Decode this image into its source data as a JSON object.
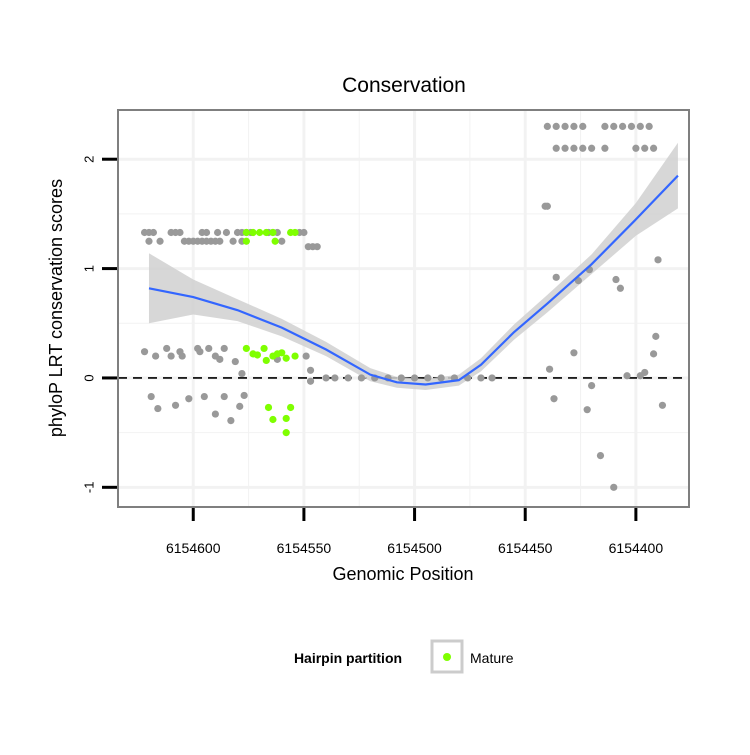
{
  "chart_data": {
    "type": "scatter",
    "title": "Conservation",
    "xlabel": "Genomic Position",
    "ylabel": "phyloP LRT conservation scores",
    "x_reversed": true,
    "xlim": [
      6154634,
      6154376
    ],
    "ylim": [
      -1.18,
      2.45
    ],
    "x_ticks": [
      6154600,
      6154550,
      6154500,
      6154450,
      6154400
    ],
    "x_tick_labels": [
      "6154600",
      "6154550",
      "6154500",
      "6154450",
      "6154400"
    ],
    "y_ticks": [
      -1,
      0,
      1,
      2
    ],
    "y_tick_labels": [
      "-1",
      "0",
      "1",
      "2"
    ],
    "reference_line": {
      "y": 0,
      "style": "dashed",
      "color": "#000000"
    },
    "colors": {
      "other": "#999999",
      "mature": "#7fff00",
      "smooth": "#3366ff",
      "ribbon": "#d0d0d0",
      "panel_border": "#7f7f7f",
      "grid": "#f2f2f2"
    },
    "series": [
      {
        "name": "Other",
        "color": "#999999",
        "points": [
          [
            6154622,
            1.33
          ],
          [
            6154620,
            1.33
          ],
          [
            6154618,
            1.33
          ],
          [
            6154610,
            1.33
          ],
          [
            6154608,
            1.33
          ],
          [
            6154606,
            1.33
          ],
          [
            6154596,
            1.33
          ],
          [
            6154594,
            1.33
          ],
          [
            6154589,
            1.33
          ],
          [
            6154585,
            1.33
          ],
          [
            6154580,
            1.33
          ],
          [
            6154578,
            1.33
          ],
          [
            6154576,
            1.33
          ],
          [
            6154574,
            1.33
          ],
          [
            6154566,
            1.33
          ],
          [
            6154564,
            1.33
          ],
          [
            6154562,
            1.33
          ],
          [
            6154552,
            1.33
          ],
          [
            6154550,
            1.33
          ],
          [
            6154620,
            1.25
          ],
          [
            6154615,
            1.25
          ],
          [
            6154604,
            1.25
          ],
          [
            6154602,
            1.25
          ],
          [
            6154600,
            1.25
          ],
          [
            6154598,
            1.25
          ],
          [
            6154596,
            1.25
          ],
          [
            6154594,
            1.25
          ],
          [
            6154592,
            1.25
          ],
          [
            6154590,
            1.25
          ],
          [
            6154588,
            1.25
          ],
          [
            6154582,
            1.25
          ],
          [
            6154578,
            1.25
          ],
          [
            6154560,
            1.25
          ],
          [
            6154548,
            1.2
          ],
          [
            6154546,
            1.2
          ],
          [
            6154544,
            1.2
          ],
          [
            6154622,
            0.24
          ],
          [
            6154617,
            0.2
          ],
          [
            6154612,
            0.27
          ],
          [
            6154610,
            0.2
          ],
          [
            6154606,
            0.24
          ],
          [
            6154605,
            0.2
          ],
          [
            6154598,
            0.27
          ],
          [
            6154597,
            0.24
          ],
          [
            6154593,
            0.27
          ],
          [
            6154590,
            0.2
          ],
          [
            6154588,
            0.17
          ],
          [
            6154586,
            0.27
          ],
          [
            6154581,
            0.15
          ],
          [
            6154578,
            0.04
          ],
          [
            6154549,
            0.2
          ],
          [
            6154547,
            0.07
          ],
          [
            6154562,
            0.17
          ],
          [
            6154619,
            -0.17
          ],
          [
            6154616,
            -0.28
          ],
          [
            6154608,
            -0.25
          ],
          [
            6154602,
            -0.19
          ],
          [
            6154595,
            -0.17
          ],
          [
            6154590,
            -0.33
          ],
          [
            6154586,
            -0.17
          ],
          [
            6154583,
            -0.39
          ],
          [
            6154579,
            -0.26
          ],
          [
            6154577,
            -0.16
          ],
          [
            6154547,
            -0.03
          ],
          [
            6154540,
            0.0
          ],
          [
            6154536,
            0.0
          ],
          [
            6154530,
            0.0
          ],
          [
            6154524,
            0.0
          ],
          [
            6154518,
            0.0
          ],
          [
            6154512,
            0.0
          ],
          [
            6154506,
            0.0
          ],
          [
            6154500,
            0.0
          ],
          [
            6154494,
            0.0
          ],
          [
            6154488,
            0.0
          ],
          [
            6154482,
            0.0
          ],
          [
            6154476,
            0.0
          ],
          [
            6154470,
            0.0
          ],
          [
            6154465,
            0.0
          ],
          [
            6154441,
            1.57
          ],
          [
            6154440,
            1.57
          ],
          [
            6154436,
            0.92
          ],
          [
            6154428,
            0.23
          ],
          [
            6154426,
            0.89
          ],
          [
            6154421,
            0.99
          ],
          [
            6154439,
            0.08
          ],
          [
            6154437,
            -0.19
          ],
          [
            6154422,
            -0.29
          ],
          [
            6154420,
            -0.07
          ],
          [
            6154416,
            -0.71
          ],
          [
            6154410,
            -1.0
          ],
          [
            6154409,
            0.9
          ],
          [
            6154407,
            0.82
          ],
          [
            6154404,
            0.02
          ],
          [
            6154398,
            0.02
          ],
          [
            6154396,
            0.05
          ],
          [
            6154392,
            0.22
          ],
          [
            6154391,
            0.38
          ],
          [
            6154390,
            1.08
          ],
          [
            6154388,
            -0.25
          ],
          [
            6154440,
            2.3
          ],
          [
            6154436,
            2.3
          ],
          [
            6154432,
            2.3
          ],
          [
            6154428,
            2.3
          ],
          [
            6154424,
            2.3
          ],
          [
            6154414,
            2.3
          ],
          [
            6154410,
            2.3
          ],
          [
            6154406,
            2.3
          ],
          [
            6154402,
            2.3
          ],
          [
            6154398,
            2.3
          ],
          [
            6154394,
            2.3
          ],
          [
            6154436,
            2.1
          ],
          [
            6154432,
            2.1
          ],
          [
            6154428,
            2.1
          ],
          [
            6154424,
            2.1
          ],
          [
            6154420,
            2.1
          ],
          [
            6154414,
            2.1
          ],
          [
            6154400,
            2.1
          ],
          [
            6154396,
            2.1
          ],
          [
            6154392,
            2.1
          ]
        ]
      },
      {
        "name": "Mature",
        "color": "#7fff00",
        "points": [
          [
            6154576,
            1.33
          ],
          [
            6154573,
            1.33
          ],
          [
            6154570,
            1.33
          ],
          [
            6154567,
            1.33
          ],
          [
            6154564,
            1.33
          ],
          [
            6154556,
            1.33
          ],
          [
            6154554,
            1.33
          ],
          [
            6154576,
            1.25
          ],
          [
            6154563,
            1.25
          ],
          [
            6154576,
            0.27
          ],
          [
            6154573,
            0.22
          ],
          [
            6154571,
            0.21
          ],
          [
            6154568,
            0.27
          ],
          [
            6154567,
            0.16
          ],
          [
            6154564,
            0.2
          ],
          [
            6154562,
            0.22
          ],
          [
            6154560,
            0.23
          ],
          [
            6154558,
            0.18
          ],
          [
            6154554,
            0.2
          ],
          [
            6154566,
            -0.27
          ],
          [
            6154564,
            -0.38
          ],
          [
            6154558,
            -0.37
          ],
          [
            6154556,
            -0.27
          ],
          [
            6154558,
            -0.5
          ]
        ]
      },
      {
        "name": "Smooth",
        "type": "line",
        "color": "#3366ff",
        "points": [
          [
            6154620,
            0.82
          ],
          [
            6154600,
            0.74
          ],
          [
            6154580,
            0.62
          ],
          [
            6154560,
            0.46
          ],
          [
            6154540,
            0.26
          ],
          [
            6154520,
            0.03
          ],
          [
            6154508,
            -0.04
          ],
          [
            6154495,
            -0.06
          ],
          [
            6154480,
            -0.02
          ],
          [
            6154470,
            0.12
          ],
          [
            6154455,
            0.42
          ],
          [
            6154440,
            0.68
          ],
          [
            6154420,
            1.04
          ],
          [
            6154400,
            1.45
          ],
          [
            6154381,
            1.85
          ]
        ],
        "band_lower": [
          0.5,
          0.58,
          0.52,
          0.38,
          0.2,
          -0.03,
          -0.09,
          -0.11,
          -0.07,
          0.06,
          0.35,
          0.6,
          0.95,
          1.3,
          1.55
        ],
        "band_upper": [
          1.14,
          0.9,
          0.72,
          0.54,
          0.33,
          0.09,
          0.01,
          -0.01,
          0.03,
          0.18,
          0.49,
          0.76,
          1.13,
          1.6,
          2.15
        ]
      }
    ],
    "legend": {
      "title": "Hairpin partition",
      "position": "bottom",
      "entries": [
        {
          "label": "Mature",
          "color": "#7fff00"
        }
      ]
    }
  }
}
